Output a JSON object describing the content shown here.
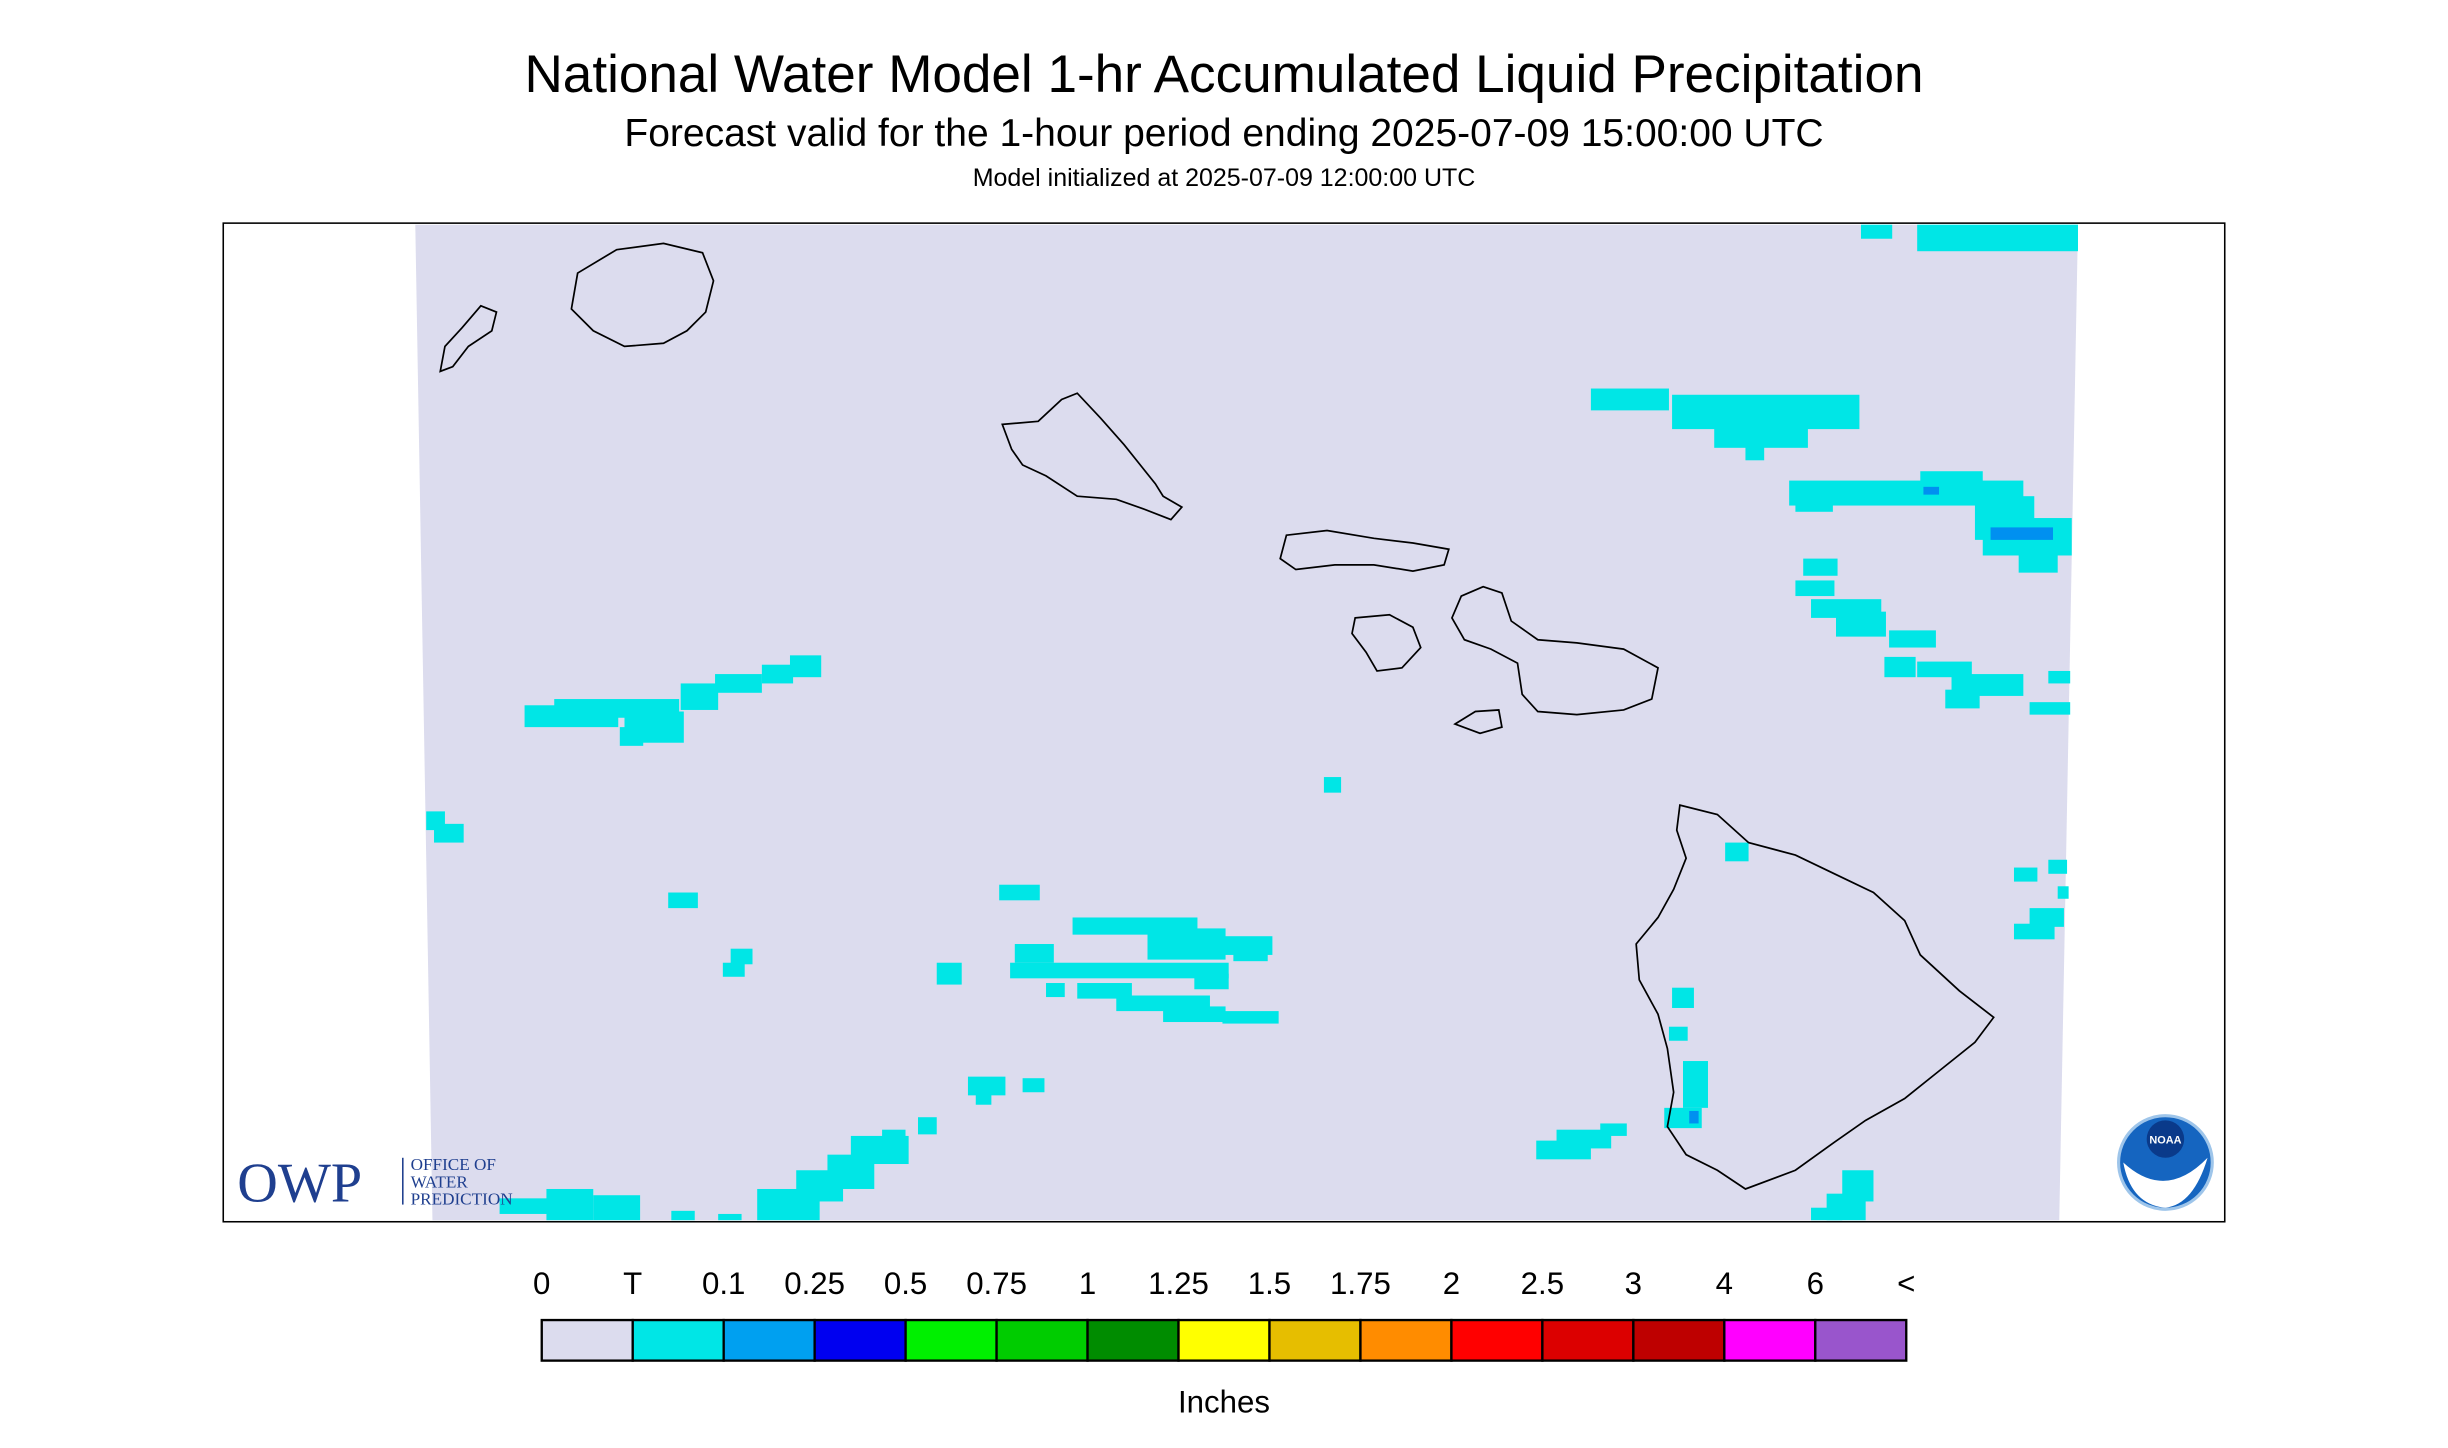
{
  "header": {
    "title": "National Water Model 1-hr Accumulated Liquid Precipitation",
    "subtitle": "Forecast valid for the 1-hour period ending 2025-07-09 15:00:00 UTC",
    "init": "Model initialized at 2025-07-09 12:00:00 UTC"
  },
  "logos": {
    "owp": "OWP",
    "owp_lines": [
      "OFFICE OF",
      "WATER",
      "PREDICTION"
    ],
    "noaa": "NOAA"
  },
  "legend": {
    "labels": [
      "0",
      "T",
      "0.1",
      "0.25",
      "0.5",
      "0.75",
      "1",
      "1.25",
      "1.5",
      "1.75",
      "2",
      "2.5",
      "3",
      "4",
      "6",
      "<"
    ],
    "colors": [
      "#dcdcee",
      "#00e6e6",
      "#00a0f0",
      "#0000f0",
      "#00f000",
      "#00cc00",
      "#008c00",
      "#ffff00",
      "#e6be00",
      "#ff8c00",
      "#ff0000",
      "#dc0000",
      "#be0000",
      "#ff00ff",
      "#9955cc"
    ],
    "unit": "Inches"
  }
}
